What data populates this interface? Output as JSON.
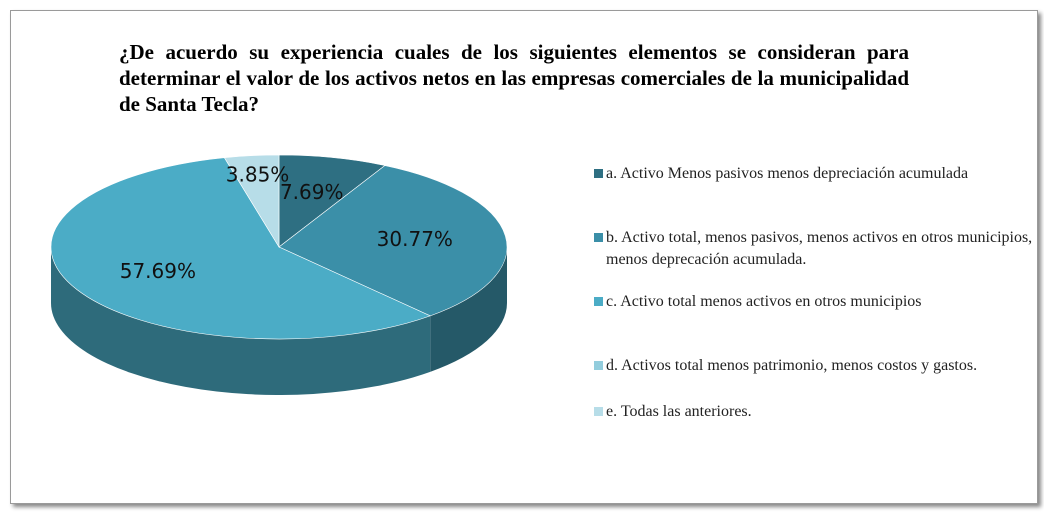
{
  "chart_data": {
    "type": "pie",
    "title": "¿De acuerdo su experiencia cuales de los siguientes elementos se consideran para determinar el valor de los activos netos en las empresas comerciales de la municipalidad de Santa Tecla?",
    "categories": [
      "a. Activo Menos pasivos menos depreciación acumulada",
      "b. Activo total, menos pasivos, menos activos en otros municipios, menos deprecación acumulada.",
      "c. Activo total menos activos en otros municipios",
      "d. Activos total menos patrimonio, menos costos y gastos.",
      "e. Todas las anteriores."
    ],
    "values": [
      7.69,
      30.77,
      57.69,
      0,
      3.85
    ],
    "value_labels": [
      "7.69%",
      "30.77%",
      "57.69%",
      null,
      "3.85%"
    ],
    "colors": [
      "#2e6f82",
      "#3b8fa8",
      "#4bacc6",
      "#93cddd",
      "#b7dde8"
    ]
  }
}
